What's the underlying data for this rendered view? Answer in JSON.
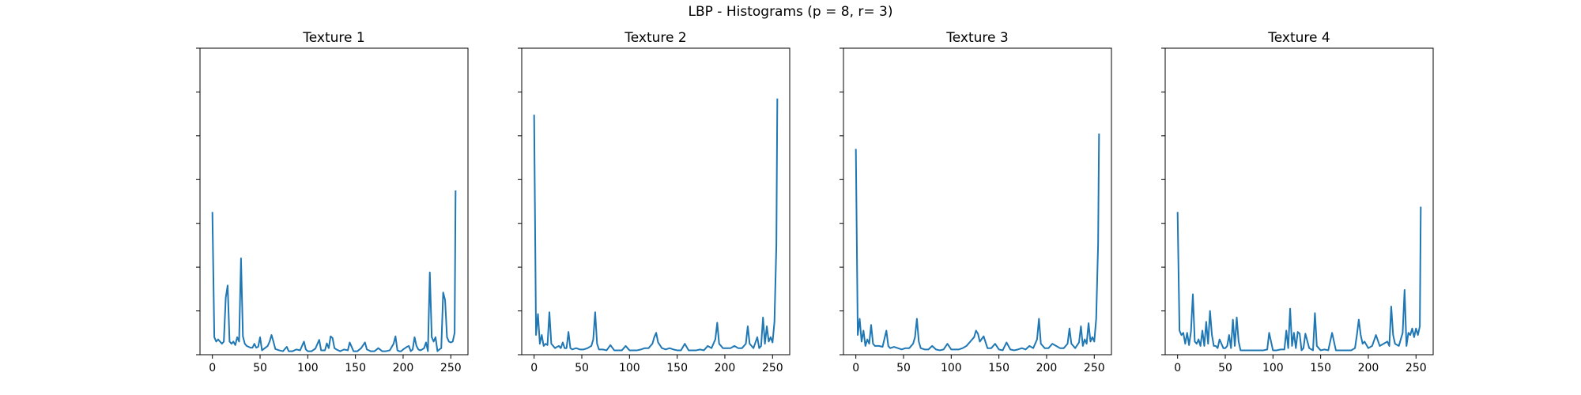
{
  "figure": {
    "title": "LBP - Histograms (p = 8, r= 3)"
  },
  "colors": {
    "line": "#1f77b4",
    "axes": "#000000",
    "background": "#ffffff"
  },
  "chart_data": [
    {
      "type": "line",
      "title": "Texture 1",
      "xlabel": "",
      "ylabel": "",
      "xlim": [
        -13,
        268
      ],
      "ylim": [
        0,
        0.07
      ],
      "xticks": [
        0,
        50,
        100,
        150,
        200,
        250
      ],
      "yticks": [
        0,
        0.01,
        0.02,
        0.03,
        0.04,
        0.05,
        0.06,
        0.07
      ],
      "y_tick_labels_shown": false,
      "grid": false,
      "series": [
        {
          "x": [
            0,
            2,
            4,
            6,
            8,
            10,
            12,
            14,
            16,
            18,
            20,
            22,
            24,
            26,
            28,
            30,
            32,
            34,
            36,
            38,
            40,
            42,
            44,
            46,
            48,
            50,
            52,
            55,
            58,
            60,
            62,
            64,
            66,
            70,
            74,
            78,
            80,
            84,
            88,
            92,
            96,
            98,
            100,
            104,
            108,
            112,
            114,
            118,
            120,
            122,
            124,
            126,
            128,
            130,
            134,
            138,
            142,
            144,
            148,
            152,
            156,
            160,
            162,
            166,
            170,
            174,
            178,
            182,
            186,
            190,
            192,
            194,
            196,
            198,
            200,
            204,
            206,
            208,
            210,
            212,
            214,
            216,
            218,
            220,
            222,
            224,
            226,
            228,
            230,
            232,
            234,
            236,
            238,
            240,
            242,
            244,
            246,
            248,
            250,
            252,
            254,
            255
          ],
          "y": [
            0.0326,
            0.004,
            0.003,
            0.0035,
            0.003,
            0.0025,
            0.003,
            0.013,
            0.0158,
            0.003,
            0.0025,
            0.003,
            0.0022,
            0.004,
            0.003,
            0.022,
            0.0042,
            0.0025,
            0.002,
            0.0018,
            0.0016,
            0.0016,
            0.0025,
            0.0016,
            0.0018,
            0.004,
            0.001,
            0.0015,
            0.002,
            0.003,
            0.0045,
            0.003,
            0.0013,
            0.001,
            0.0008,
            0.0018,
            0.0008,
            0.0008,
            0.0012,
            0.001,
            0.003,
            0.0012,
            0.0008,
            0.0008,
            0.0014,
            0.0034,
            0.001,
            0.001,
            0.0026,
            0.0015,
            0.0042,
            0.0038,
            0.0015,
            0.0012,
            0.0008,
            0.0012,
            0.001,
            0.0028,
            0.0008,
            0.0008,
            0.0015,
            0.0028,
            0.0012,
            0.0008,
            0.0008,
            0.0015,
            0.0008,
            0.0008,
            0.001,
            0.0025,
            0.0042,
            0.001,
            0.0008,
            0.0008,
            0.0012,
            0.0018,
            0.002,
            0.0008,
            0.0012,
            0.004,
            0.002,
            0.0012,
            0.001,
            0.0012,
            0.0015,
            0.0028,
            0.0008,
            0.0188,
            0.004,
            0.003,
            0.004,
            0.0008,
            0.0012,
            0.0015,
            0.0142,
            0.0125,
            0.004,
            0.003,
            0.0028,
            0.003,
            0.005,
            0.0375
          ]
        }
      ]
    },
    {
      "type": "line",
      "title": "Texture 2",
      "xlabel": "",
      "ylabel": "",
      "xlim": [
        -13,
        268
      ],
      "ylim": [
        0,
        0.07
      ],
      "xticks": [
        0,
        50,
        100,
        150,
        200,
        250
      ],
      "yticks": [
        0,
        0.01,
        0.02,
        0.03,
        0.04,
        0.05,
        0.06,
        0.07
      ],
      "y_tick_labels_shown": false,
      "grid": false,
      "series": [
        {
          "x": [
            0,
            2,
            4,
            6,
            8,
            10,
            12,
            14,
            16,
            18,
            20,
            22,
            24,
            26,
            28,
            30,
            32,
            34,
            36,
            38,
            40,
            44,
            48,
            52,
            56,
            60,
            62,
            64,
            66,
            68,
            72,
            76,
            80,
            84,
            88,
            92,
            96,
            100,
            104,
            108,
            112,
            116,
            120,
            124,
            126,
            128,
            130,
            134,
            138,
            142,
            146,
            150,
            154,
            158,
            162,
            166,
            170,
            174,
            178,
            182,
            186,
            190,
            192,
            194,
            198,
            202,
            206,
            210,
            214,
            218,
            222,
            224,
            226,
            230,
            234,
            236,
            238,
            240,
            242,
            244,
            246,
            248,
            250,
            252,
            254,
            255
          ],
          "y": [
            0.0548,
            0.0045,
            0.0093,
            0.0025,
            0.0045,
            0.002,
            0.0025,
            0.0022,
            0.0097,
            0.0025,
            0.002,
            0.0015,
            0.0018,
            0.002,
            0.0015,
            0.0028,
            0.0015,
            0.0015,
            0.0052,
            0.0015,
            0.0012,
            0.0015,
            0.0012,
            0.0012,
            0.0015,
            0.002,
            0.0035,
            0.0097,
            0.0025,
            0.0012,
            0.0012,
            0.001,
            0.0022,
            0.001,
            0.001,
            0.001,
            0.002,
            0.001,
            0.001,
            0.001,
            0.0012,
            0.0015,
            0.0015,
            0.0025,
            0.004,
            0.005,
            0.0028,
            0.0015,
            0.0012,
            0.0015,
            0.0012,
            0.001,
            0.001,
            0.0025,
            0.001,
            0.001,
            0.001,
            0.0012,
            0.001,
            0.002,
            0.0015,
            0.0035,
            0.0073,
            0.0025,
            0.0015,
            0.0015,
            0.0015,
            0.002,
            0.0015,
            0.0015,
            0.0025,
            0.0065,
            0.0025,
            0.0015,
            0.004,
            0.0015,
            0.002,
            0.0085,
            0.0025,
            0.0065,
            0.003,
            0.004,
            0.0028,
            0.0075,
            0.025,
            0.0585
          ]
        }
      ]
    },
    {
      "type": "line",
      "title": "Texture 3",
      "xlabel": "",
      "ylabel": "",
      "xlim": [
        -13,
        268
      ],
      "ylim": [
        0,
        0.07
      ],
      "xticks": [
        0,
        50,
        100,
        150,
        200,
        250
      ],
      "yticks": [
        0,
        0.01,
        0.02,
        0.03,
        0.04,
        0.05,
        0.06,
        0.07
      ],
      "y_tick_labels_shown": false,
      "grid": false,
      "series": [
        {
          "x": [
            0,
            2,
            4,
            6,
            8,
            10,
            12,
            14,
            16,
            18,
            20,
            24,
            28,
            32,
            34,
            36,
            40,
            44,
            48,
            52,
            56,
            60,
            62,
            64,
            66,
            68,
            72,
            76,
            80,
            84,
            88,
            92,
            96,
            100,
            104,
            108,
            112,
            116,
            120,
            124,
            126,
            128,
            130,
            134,
            138,
            142,
            146,
            150,
            154,
            158,
            162,
            166,
            170,
            174,
            178,
            182,
            186,
            190,
            192,
            194,
            198,
            202,
            206,
            210,
            214,
            218,
            222,
            224,
            226,
            230,
            234,
            236,
            238,
            240,
            242,
            244,
            246,
            248,
            250,
            252,
            254,
            255
          ],
          "y": [
            0.047,
            0.0045,
            0.0082,
            0.003,
            0.0055,
            0.002,
            0.0035,
            0.0025,
            0.0068,
            0.0025,
            0.002,
            0.002,
            0.0018,
            0.0055,
            0.002,
            0.0015,
            0.0018,
            0.0015,
            0.0012,
            0.0015,
            0.0015,
            0.0025,
            0.004,
            0.0082,
            0.003,
            0.0015,
            0.0012,
            0.0012,
            0.002,
            0.0012,
            0.001,
            0.0012,
            0.0025,
            0.0012,
            0.0012,
            0.0012,
            0.0015,
            0.002,
            0.003,
            0.004,
            0.0055,
            0.0048,
            0.003,
            0.0042,
            0.0015,
            0.0015,
            0.0025,
            0.0012,
            0.001,
            0.0028,
            0.0012,
            0.001,
            0.0012,
            0.0015,
            0.0012,
            0.002,
            0.0015,
            0.0035,
            0.0082,
            0.0025,
            0.0015,
            0.0015,
            0.0025,
            0.002,
            0.0015,
            0.0015,
            0.0025,
            0.006,
            0.0025,
            0.0015,
            0.0028,
            0.0065,
            0.002,
            0.0035,
            0.0025,
            0.0072,
            0.003,
            0.004,
            0.003,
            0.0082,
            0.025,
            0.0505
          ]
        }
      ]
    },
    {
      "type": "line",
      "title": "Texture 4",
      "xlabel": "",
      "ylabel": "",
      "xlim": [
        -13,
        268
      ],
      "ylim": [
        0,
        0.07
      ],
      "xticks": [
        0,
        50,
        100,
        150,
        200,
        250
      ],
      "yticks": [
        0,
        0.01,
        0.02,
        0.03,
        0.04,
        0.05,
        0.06,
        0.07
      ],
      "y_tick_labels_shown": false,
      "grid": false,
      "series": [
        {
          "x": [
            0,
            2,
            4,
            6,
            8,
            10,
            12,
            14,
            16,
            18,
            20,
            22,
            24,
            26,
            28,
            30,
            32,
            34,
            36,
            38,
            40,
            42,
            44,
            48,
            50,
            52,
            54,
            56,
            58,
            60,
            62,
            64,
            66,
            70,
            74,
            78,
            82,
            86,
            90,
            94,
            96,
            100,
            104,
            108,
            112,
            114,
            116,
            118,
            120,
            122,
            124,
            126,
            128,
            130,
            132,
            134,
            138,
            142,
            144,
            146,
            150,
            154,
            158,
            162,
            166,
            170,
            174,
            178,
            182,
            186,
            188,
            190,
            192,
            194,
            196,
            200,
            204,
            208,
            212,
            216,
            220,
            222,
            224,
            226,
            228,
            232,
            236,
            238,
            240,
            242,
            244,
            246,
            248,
            250,
            252,
            254,
            255
          ],
          "y": [
            0.0326,
            0.0055,
            0.0045,
            0.005,
            0.0025,
            0.005,
            0.0022,
            0.0052,
            0.0138,
            0.003,
            0.0025,
            0.0035,
            0.002,
            0.0055,
            0.002,
            0.0075,
            0.0025,
            0.01,
            0.0045,
            0.002,
            0.002,
            0.0015,
            0.0035,
            0.0015,
            0.0015,
            0.002,
            0.0045,
            0.0015,
            0.008,
            0.002,
            0.0085,
            0.003,
            0.001,
            0.001,
            0.001,
            0.001,
            0.001,
            0.001,
            0.001,
            0.0012,
            0.005,
            0.001,
            0.001,
            0.0012,
            0.0012,
            0.0055,
            0.0015,
            0.0105,
            0.002,
            0.005,
            0.0015,
            0.0052,
            0.0048,
            0.001,
            0.0015,
            0.0048,
            0.0015,
            0.001,
            0.0095,
            0.002,
            0.001,
            0.0012,
            0.001,
            0.005,
            0.001,
            0.001,
            0.001,
            0.001,
            0.001,
            0.0015,
            0.0045,
            0.008,
            0.0045,
            0.0025,
            0.003,
            0.0015,
            0.002,
            0.0045,
            0.002,
            0.0025,
            0.003,
            0.002,
            0.011,
            0.0045,
            0.0025,
            0.002,
            0.005,
            0.0148,
            0.002,
            0.005,
            0.0045,
            0.006,
            0.004,
            0.006,
            0.0045,
            0.0065,
            0.0338
          ]
        }
      ]
    }
  ]
}
